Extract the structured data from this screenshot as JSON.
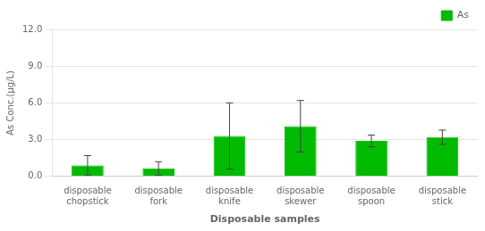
{
  "chart_data": {
    "type": "bar",
    "categories": [
      "disposable\nchopstick",
      "disposable\nfork",
      "disposable\nknife",
      "disposable\nskewer",
      "disposable\nspoon",
      "disposable\nstick"
    ],
    "series": [
      {
        "name": "As",
        "color": "#00BB00",
        "values": [
          0.9,
          0.65,
          3.3,
          4.1,
          2.9,
          3.2
        ],
        "errors": [
          0.8,
          0.55,
          2.7,
          2.1,
          0.48,
          0.58
        ]
      }
    ],
    "xlabel": "Disposable samples",
    "ylabel": "As Conc.(μg/L)",
    "ylim": [
      0,
      12.0
    ],
    "yticks": [
      {
        "value": 0.0,
        "label": "0.0"
      },
      {
        "value": 3.0,
        "label": "3.0"
      },
      {
        "value": 6.0,
        "label": "6.0"
      },
      {
        "value": 9.0,
        "label": "9.0"
      },
      {
        "value": 12.0,
        "label": "12.0"
      }
    ],
    "grid": true,
    "legend": "upper right"
  }
}
